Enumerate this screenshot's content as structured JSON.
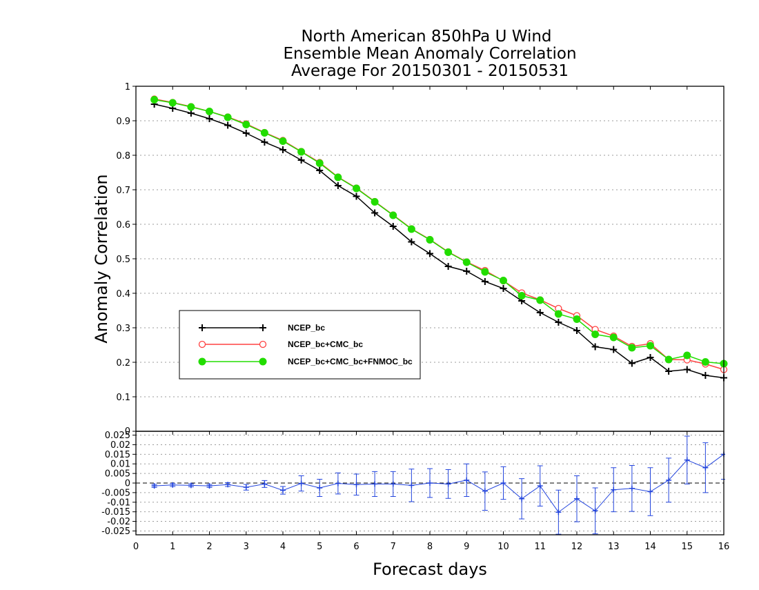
{
  "title_lines": [
    "North American 850hPa U Wind",
    "Ensemble Mean Anomaly Correlation",
    "Average For 20150301 - 20150531"
  ],
  "chart_data": [
    {
      "type": "line",
      "ylabel": "Anomaly Correlation",
      "ylim": [
        0,
        1
      ],
      "xlim": [
        0,
        16
      ],
      "yticks": [
        0,
        0.1,
        0.2,
        0.3,
        0.4,
        0.5,
        0.6,
        0.7,
        0.8,
        0.9,
        1
      ],
      "ytick_labels": [
        "0",
        "0.1",
        "0.2",
        "0.3",
        "0.4",
        "0.5",
        "0.6",
        "0.7",
        "0.8",
        "0.9",
        "1"
      ],
      "grid": "horizontal dotted",
      "legend_position": "left-middle",
      "x": [
        0.5,
        1,
        1.5,
        2,
        2.5,
        3,
        3.5,
        4,
        4.5,
        5,
        5.5,
        6,
        6.5,
        7,
        7.5,
        8,
        8.5,
        9,
        9.5,
        10,
        10.5,
        11,
        11.5,
        12,
        12.5,
        13,
        13.5,
        14,
        14.5,
        15,
        15.5,
        16
      ],
      "series": [
        {
          "name": "NCEP_bc",
          "color": "#000000",
          "marker": "plus",
          "values": [
            0.948,
            0.936,
            0.922,
            0.906,
            0.887,
            0.864,
            0.838,
            0.816,
            0.786,
            0.756,
            0.712,
            0.681,
            0.633,
            0.594,
            0.549,
            0.515,
            0.478,
            0.464,
            0.434,
            0.414,
            0.378,
            0.344,
            0.316,
            0.292,
            0.245,
            0.237,
            0.197,
            0.214,
            0.174,
            0.179,
            0.162,
            0.155
          ]
        },
        {
          "name": "NCEP_bc+CMC_bc",
          "color": "#ff4040",
          "marker": "open-circle",
          "values": [
            0.963,
            0.953,
            0.941,
            0.927,
            0.911,
            0.891,
            0.866,
            0.843,
            0.811,
            0.779,
            0.737,
            0.705,
            0.666,
            0.627,
            0.587,
            0.556,
            0.52,
            0.491,
            0.466,
            0.436,
            0.401,
            0.381,
            0.356,
            0.335,
            0.295,
            0.276,
            0.246,
            0.254,
            0.208,
            0.207,
            0.195,
            0.179
          ]
        },
        {
          "name": "NCEP_bc+CMC_bc+FNMOC_bc",
          "color": "#22dd00",
          "marker": "filled-circle",
          "values": [
            0.961,
            0.952,
            0.94,
            0.927,
            0.91,
            0.889,
            0.865,
            0.841,
            0.81,
            0.777,
            0.736,
            0.704,
            0.665,
            0.626,
            0.586,
            0.555,
            0.519,
            0.49,
            0.462,
            0.437,
            0.393,
            0.38,
            0.34,
            0.325,
            0.281,
            0.272,
            0.242,
            0.248,
            0.208,
            0.22,
            0.201,
            0.196
          ]
        }
      ]
    },
    {
      "type": "line",
      "xlabel": "Forecast days",
      "ylim": [
        -0.027,
        0.027
      ],
      "xlim": [
        0,
        16
      ],
      "xtick_labels": [
        "0",
        "1",
        "2",
        "3",
        "4",
        "5",
        "6",
        "7",
        "8",
        "9",
        "10",
        "11",
        "12",
        "13",
        "14",
        "15",
        "16"
      ],
      "yticks": [
        0.025,
        0.02,
        0.015,
        0.01,
        0.005,
        0,
        -0.005,
        -0.01,
        -0.015,
        -0.02,
        -0.025
      ],
      "ytick_labels": [
        "0.025",
        "0.02",
        "0.015",
        "0.01",
        "0.005",
        "0",
        "-0.005",
        "-0.01",
        "-0.015",
        "-0.02",
        "-0.025"
      ],
      "panel_top_label": "0",
      "grid": "horizontal dotted",
      "reference_line": 0,
      "series": [
        {
          "color": "#2244dd",
          "marker": "plus",
          "error_bars": true,
          "x": [
            0.5,
            1,
            1.5,
            2,
            2.5,
            3,
            3.5,
            4,
            4.5,
            5,
            5.5,
            6,
            6.5,
            7,
            7.5,
            8,
            8.5,
            9,
            9.5,
            10,
            10.5,
            11,
            11.5,
            12,
            12.5,
            13,
            13.5,
            14,
            14.5,
            15,
            15.5,
            16
          ],
          "values": [
            -0.0015,
            -0.001,
            -0.0012,
            -0.0015,
            -0.0008,
            -0.0022,
            -0.0005,
            -0.0038,
            -0.0002,
            -0.0025,
            -0.0002,
            -0.0008,
            -0.0005,
            -0.0005,
            -0.0012,
            0.0,
            -0.0005,
            0.0015,
            -0.0042,
            0.0,
            -0.0082,
            -0.0015,
            -0.0152,
            -0.0082,
            -0.0145,
            -0.0035,
            -0.0028,
            -0.0045,
            0.0015,
            0.012,
            0.008,
            0.015
          ],
          "error": [
            0.0008,
            0.0008,
            0.0008,
            0.0008,
            0.001,
            0.0015,
            0.0018,
            0.002,
            0.004,
            0.0045,
            0.0055,
            0.0055,
            0.0065,
            0.0065,
            0.0085,
            0.0075,
            0.0075,
            0.0085,
            0.01,
            0.0085,
            0.0105,
            0.0105,
            0.0115,
            0.012,
            0.012,
            0.0115,
            0.012,
            0.0125,
            0.0115,
            0.0125,
            0.013,
            0.013
          ]
        }
      ]
    }
  ]
}
